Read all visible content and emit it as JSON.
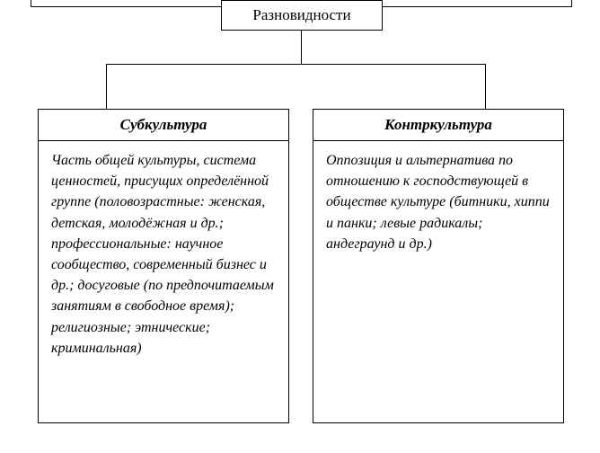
{
  "diagram": {
    "type": "tree",
    "background_color": "#ffffff",
    "border_color": "#000000",
    "text_color": "#000000",
    "root": {
      "label": "Разновидности",
      "font_size": 17,
      "font_weight": "normal",
      "font_style": "normal"
    },
    "children": [
      {
        "title": "Субкультура",
        "title_font_size": 17,
        "title_font_weight": "bold",
        "title_font_style": "italic",
        "body": "Часть общей культуры, система ценностей, при­сущих определённой группе (половозрастные: жен­ская, детская, молодёжная и др.; профессиональные: научное сообщество, совре­менный бизнес и др.; досуго­вые (по предпочитаемым занятиям в свободное вре­мя); религиозные; эт­нические; криминальная)",
        "body_font_size": 16,
        "body_font_style": "italic"
      },
      {
        "title": "Контркультура",
        "title_font_size": 17,
        "title_font_weight": "bold",
        "title_font_style": "italic",
        "body": "Оппозиция и альтернати­ва по отношению к господ­ствующей в обществе культуре (битники, хип­пи и панки; левые радика­лы; андеграунд и др.)",
        "body_font_size": 16,
        "body_font_style": "italic"
      }
    ]
  }
}
